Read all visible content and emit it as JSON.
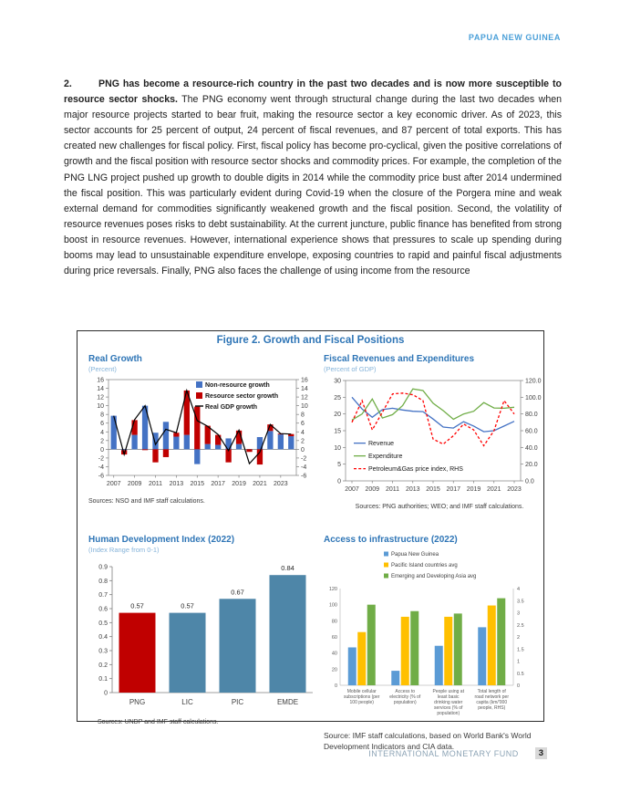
{
  "colors": {
    "accent_blue": "#2E75B6",
    "header_blue": "#4A9FD8",
    "subtitle_blue": "#85B3D9",
    "footer_blue": "#8CA3B5",
    "badge_bg": "#D9D9D9",
    "text": "#212121"
  },
  "header": {
    "title": "PAPUA NEW GUINEA"
  },
  "paragraph": {
    "number": "2.",
    "lead": "PNG has become a resource-rich country in the past two decades and is now more susceptible to resource sector shocks.",
    "body": " The PNG economy went through structural change during the last two decades when major resource projects started to bear fruit, making the resource sector a key economic driver. As of 2023, this sector accounts for 25 percent of output, 24 percent of fiscal revenues, and 87 percent of total exports. This has created new challenges for fiscal policy. First, fiscal policy has become pro-cyclical, given the positive correlations of growth and the fiscal position with resource sector shocks and commodity prices. For example, the completion of the PNG LNG project pushed up growth to double digits in 2014 while the commodity price bust after 2014 undermined the fiscal position. This was particularly evident during Covid-19 when the closure of the Porgera mine and weak external demand for commodities significantly weakened growth and the fiscal position. Second, the volatility of resource revenues poses risks to debt sustainability. At the current juncture, public finance has benefited from strong boost in resource revenues. However, international experience shows that pressures to scale up spending during booms may lead to unsustainable expenditure envelope, exposing countries to rapid and painful fiscal adjustments during price reversals. Finally, PNG also faces the challenge of using income from the resource"
  },
  "figure": {
    "title": "Figure 2. Growth and Fiscal Positions"
  },
  "chart_data": [
    {
      "kind": "combo",
      "type": "bar",
      "title": "Real Growth",
      "subtitle": "(Percent)",
      "x": [
        2007,
        2008,
        2009,
        2010,
        2011,
        2012,
        2013,
        2014,
        2015,
        2016,
        2017,
        2018,
        2019,
        2020,
        2021,
        2022,
        2023,
        2024
      ],
      "series": [
        {
          "name": "Non-resource growth",
          "type": "bar",
          "color": "#4472C4",
          "values": [
            7.7,
            -0.2,
            3.3,
            10.0,
            3.8,
            6.3,
            2.9,
            3.3,
            -3.4,
            1.2,
            1.0,
            2.5,
            1.2,
            0,
            2.8,
            4.2,
            3.4,
            3.0
          ]
        },
        {
          "name": "Resource sector growth",
          "type": "bar",
          "color": "#C00000",
          "values": [
            0,
            -1.0,
            3.4,
            -0.2,
            -3.0,
            -1.8,
            0.9,
            10.2,
            9.8,
            4.2,
            2.3,
            -3.0,
            3.1,
            -0.6,
            -3.5,
            1.5,
            0.2,
            0.5
          ]
        },
        {
          "name": "Real GDP growth",
          "type": "line",
          "color": "#000000",
          "values": [
            7.7,
            -1.2,
            6.8,
            10.0,
            1.1,
            4.6,
            3.8,
            13.5,
            6.6,
            5.3,
            3.4,
            -0.3,
            4.4,
            -3.3,
            -0.7,
            5.7,
            3.6,
            3.5
          ]
        }
      ],
      "ylim": [
        -6,
        16
      ],
      "ytick": 2,
      "grid": false,
      "legend_position": "top-right",
      "xticklabels": [
        "2007",
        "2009",
        "2011",
        "2013",
        "2015",
        "2017",
        "2019",
        "2021",
        "2023"
      ],
      "source": "Sources: NSO and IMF staff calculations."
    },
    {
      "kind": "dualline",
      "type": "line",
      "title": "Fiscal Revenues and Expenditures",
      "subtitle": "(Percent of GDP)",
      "x": [
        2007,
        2008,
        2009,
        2010,
        2011,
        2012,
        2013,
        2014,
        2015,
        2016,
        2017,
        2018,
        2019,
        2020,
        2021,
        2022,
        2023
      ],
      "series": [
        {
          "name": "Revenue",
          "color": "#4472C4",
          "axis": "left",
          "dashed": false,
          "values": [
            25.0,
            21.5,
            19.0,
            21.3,
            21.7,
            21.2,
            20.8,
            20.7,
            18.5,
            16.1,
            15.8,
            17.7,
            16.4,
            14.7,
            15.0,
            16.4,
            17.8
          ]
        },
        {
          "name": "Expenditure",
          "color": "#70AD47",
          "axis": "left",
          "dashed": false,
          "values": [
            18.2,
            20.0,
            24.5,
            18.8,
            19.8,
            22.5,
            27.5,
            27.0,
            23.2,
            21.0,
            18.4,
            20.0,
            20.8,
            23.4,
            21.8,
            21.7,
            22.0
          ]
        },
        {
          "name": "Petroleum&Gas price index, RHS",
          "color": "#FF0000",
          "axis": "right",
          "dashed": true,
          "values": [
            70,
            96,
            61,
            82,
            104,
            105,
            103,
            96,
            50,
            44,
            54,
            68,
            61,
            42,
            60,
            96,
            80
          ]
        }
      ],
      "ylim_left": [
        0,
        30
      ],
      "ytick_left": 5,
      "ylim_right": [
        0,
        120
      ],
      "ytick_right": 20,
      "grid": false,
      "legend_position": "bottom-left",
      "xticklabels": [
        "2007",
        "2009",
        "2011",
        "2013",
        "2015",
        "2017",
        "2019",
        "2021",
        "2023"
      ],
      "source": "Sources: PNG authorities; WEO; and IMF staff calculations."
    },
    {
      "kind": "bar",
      "type": "bar",
      "title": "Human Development Index (2022)",
      "subtitle": "(Index Range from 0-1)",
      "categories": [
        "PNG",
        "LIC",
        "PIC",
        "EMDE"
      ],
      "values": [
        0.57,
        0.57,
        0.67,
        0.84
      ],
      "value_labels": [
        "0.57",
        "0.57",
        "0.67",
        "0.84"
      ],
      "bar_colors": [
        "#C00000",
        "#4E86A8",
        "#4E86A8",
        "#4E86A8"
      ],
      "ylim": [
        0,
        0.9
      ],
      "ytick": 0.1,
      "grid": false,
      "source": "Sources: UNDP and IMF staff calculations."
    },
    {
      "kind": "grouped",
      "type": "bar",
      "title": "Access to infrastructure (2022)",
      "categories": [
        "Mobile cellular subscriptions (per 100 people)",
        "Access to electricity (% of population)",
        "People using at least basic drinking water services (% of population)",
        "Total length of road network per capita (km/'000 people, RHS)"
      ],
      "series": [
        {
          "name": "Papua New Guinea",
          "color": "#5B9BD5",
          "values": [
            47,
            18,
            49,
            2.4
          ]
        },
        {
          "name": "Pacific Island countries avg",
          "color": "#FFC000",
          "values": [
            66,
            85,
            85,
            3.3
          ]
        },
        {
          "name": "Emerging and Developing Asia avg",
          "color": "#70AD47",
          "values": [
            100,
            92,
            89,
            3.6
          ]
        }
      ],
      "rhs_category_index": 3,
      "ylim_left": [
        0,
        120
      ],
      "ytick_left": 20,
      "ylim_right": [
        0,
        4
      ],
      "ytick_right": 0.5,
      "grid": false,
      "legend_position": "top",
      "source": "Source:  IMF staff calculations, based on World Bank's World Development Indicators and CIA data."
    }
  ],
  "footer": {
    "org": "INTERNATIONAL MONETARY FUND",
    "page": "3"
  }
}
